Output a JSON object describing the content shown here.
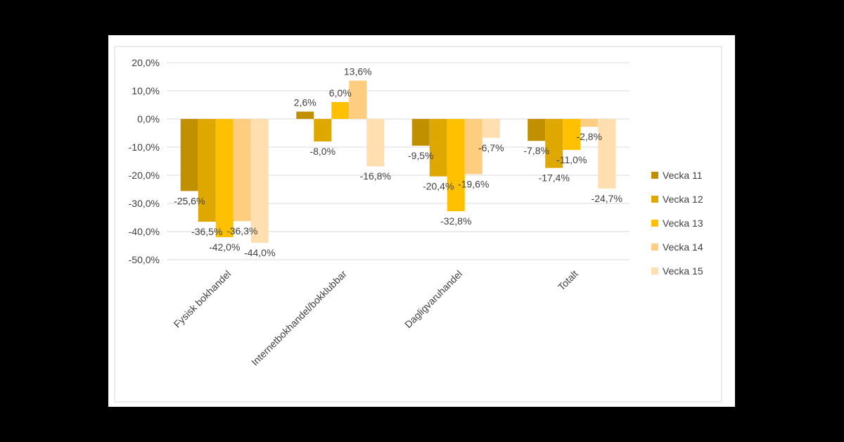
{
  "chart_data": {
    "type": "bar",
    "categories": [
      "Fysisk bokhandel",
      "Internetbokhandel/bokklubbar",
      "Dagligvaruhandel",
      "Totalt"
    ],
    "series": [
      {
        "name": "Vecka 11",
        "color": "#c09000",
        "values": [
          -25.6,
          2.6,
          -9.5,
          -7.8
        ],
        "labels": [
          "-25,6%",
          "2,6%",
          "-9,5%",
          "-7,8%"
        ]
      },
      {
        "name": "Vecka 12",
        "color": "#dfa800",
        "values": [
          -36.5,
          -8.0,
          -20.4,
          -17.4
        ],
        "labels": [
          "-36,5%",
          "-8,0%",
          "-20,4%",
          "-17,4%"
        ]
      },
      {
        "name": "Vecka 13",
        "color": "#ffc000",
        "values": [
          -42.0,
          6.0,
          -32.8,
          -11.0
        ],
        "labels": [
          "-42,0%",
          "6,0%",
          "-32,8%",
          "-11,0%"
        ]
      },
      {
        "name": "Vecka 14",
        "color": "#ffcd80",
        "values": [
          -36.3,
          13.6,
          -19.6,
          -2.8
        ],
        "labels": [
          "-36,3%",
          "13,6%",
          "-19,6%",
          "-2,8%"
        ]
      },
      {
        "name": "Vecka 15",
        "color": "#ffdeb0",
        "values": [
          -44.0,
          -16.8,
          -6.7,
          -24.7
        ],
        "labels": [
          "-44,0%",
          "-16,8%",
          "-6,7%",
          "-24,7%"
        ]
      }
    ],
    "yticks": [
      20,
      10,
      0,
      -10,
      -20,
      -30,
      -40,
      -50
    ],
    "ytick_labels": [
      "20,0%",
      "10,0%",
      "0,0%",
      "-10,0%",
      "-20,0%",
      "-30,0%",
      "-40,0%",
      "-50,0%"
    ],
    "ylim": [
      -50,
      20
    ],
    "grid": true,
    "legend_position": "right",
    "title": "",
    "xlabel": "",
    "ylabel": ""
  }
}
